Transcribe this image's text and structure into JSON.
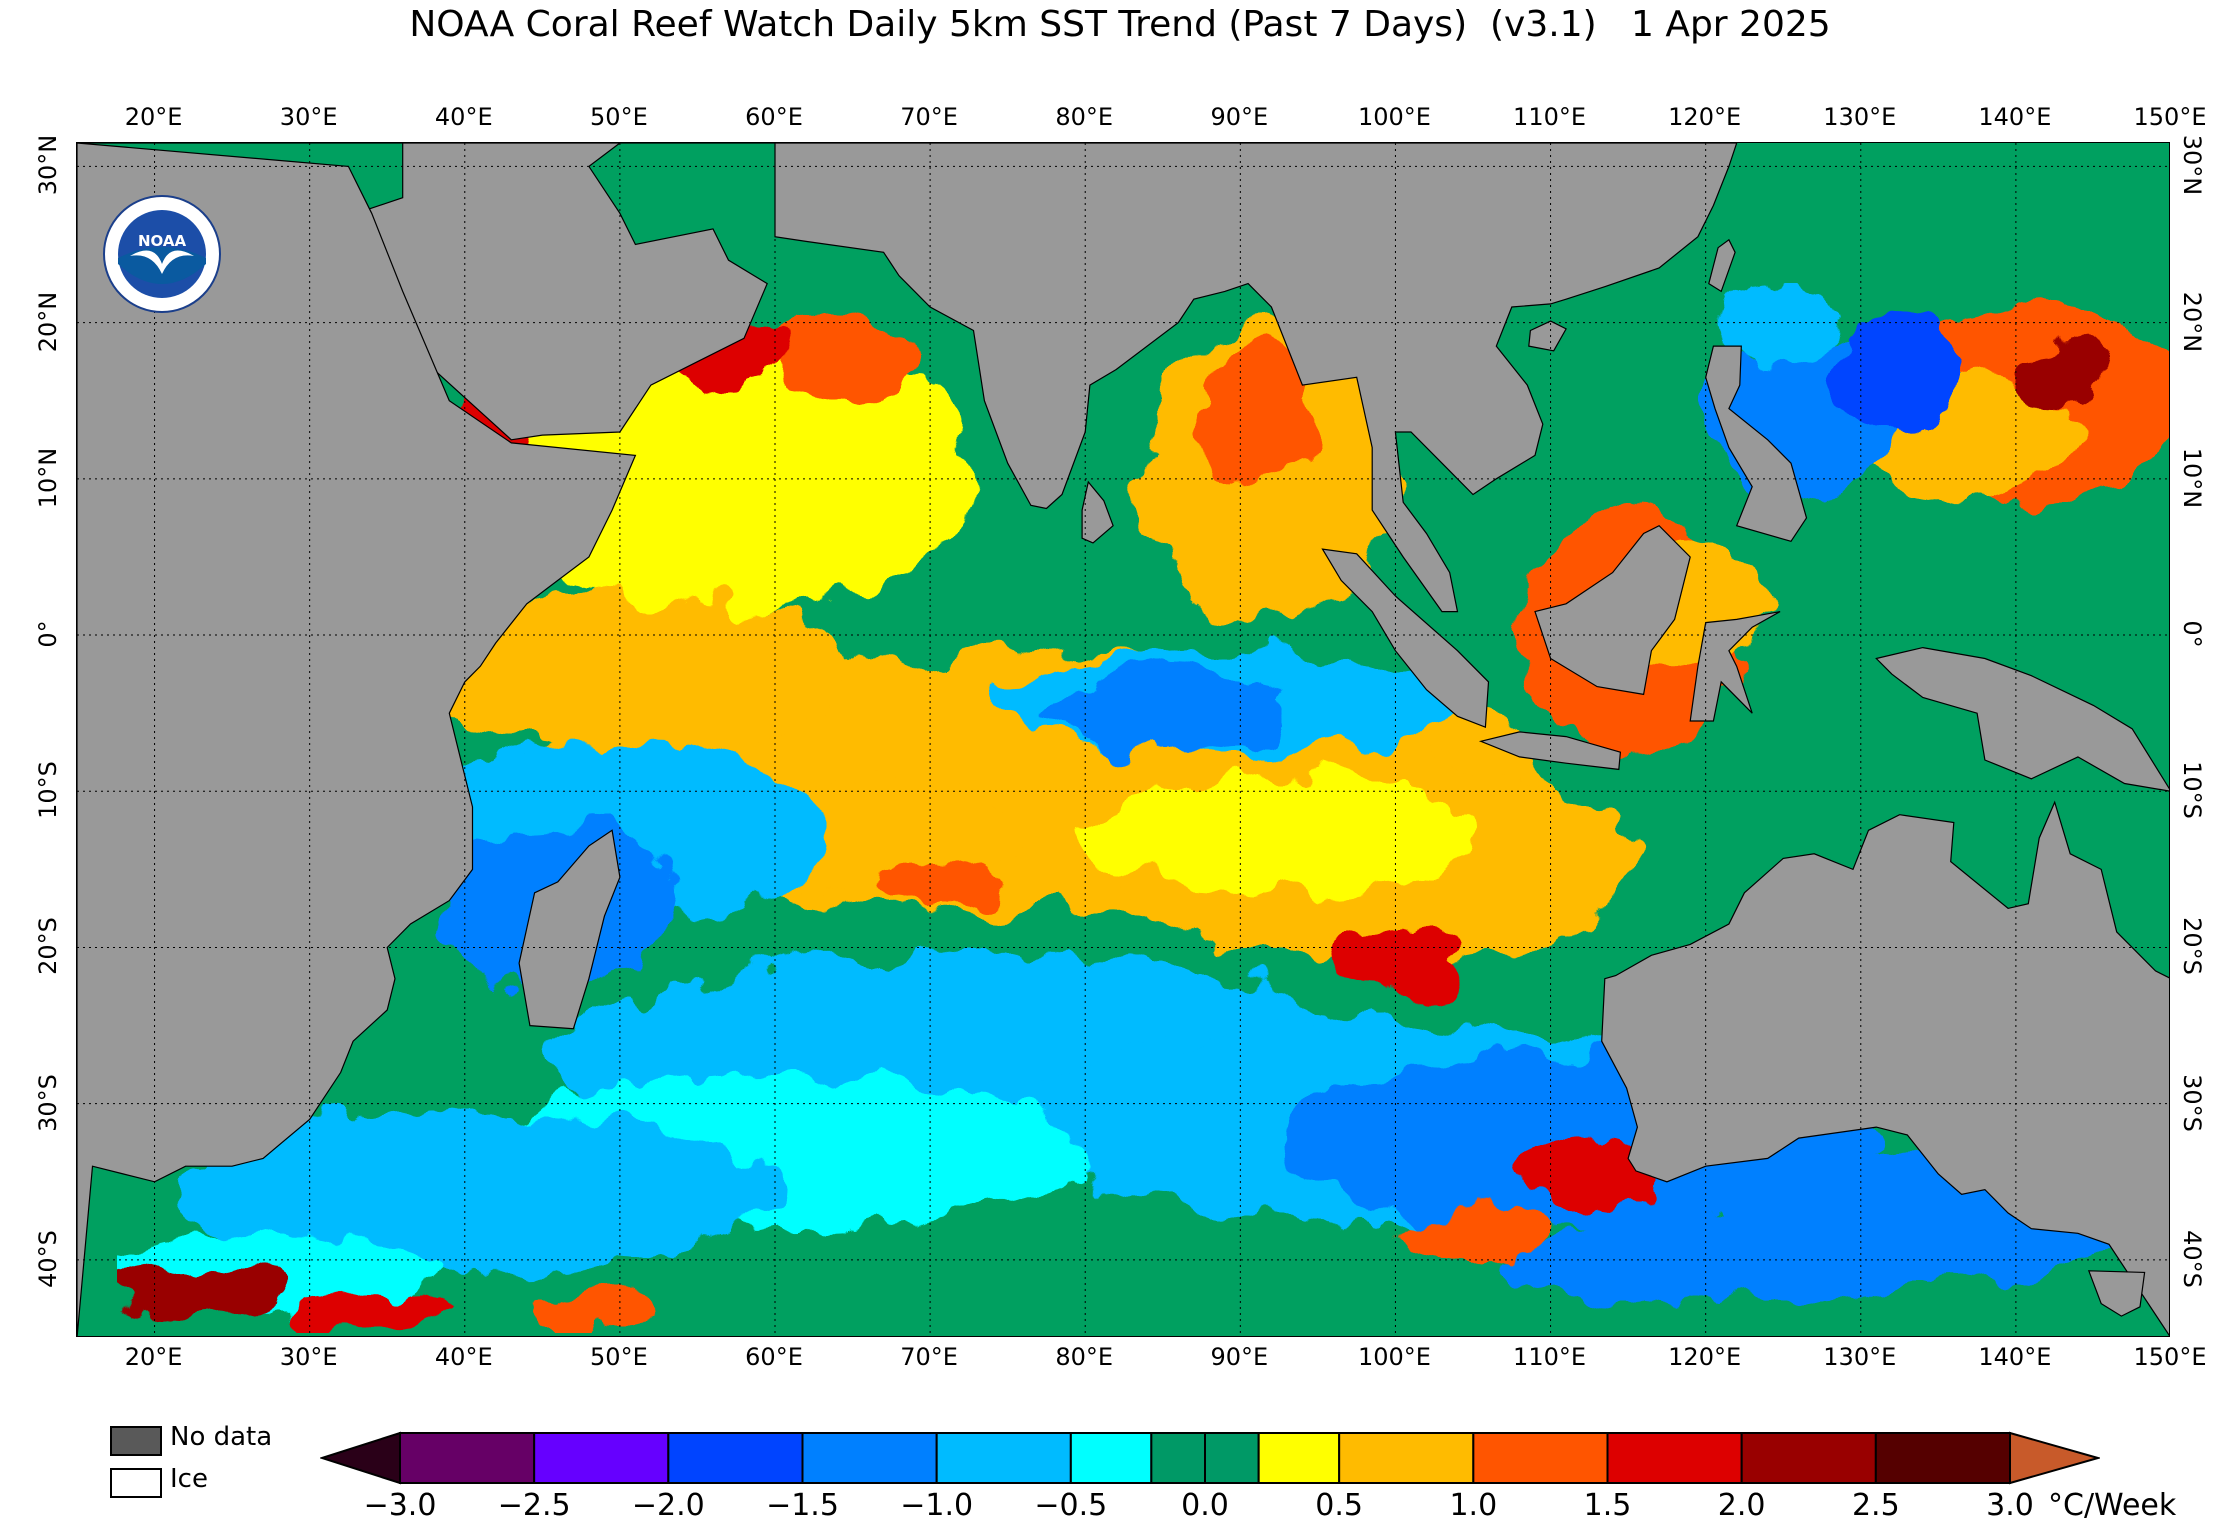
{
  "title": "NOAA Coral Reef Watch Daily 5km SST Trend (Past 7 Days)  (v3.1)   1 Apr 2025",
  "lon_labels": [
    "20°E",
    "30°E",
    "40°E",
    "50°E",
    "60°E",
    "70°E",
    "80°E",
    "90°E",
    "100°E",
    "110°E",
    "120°E",
    "130°E",
    "140°E",
    "150°E"
  ],
  "lon_values": [
    20,
    30,
    40,
    50,
    60,
    70,
    80,
    90,
    100,
    110,
    120,
    130,
    140,
    150
  ],
  "lat_labels": [
    "30°N",
    "20°N",
    "10°N",
    "0°",
    "10°S",
    "20°S",
    "30°S",
    "40°S"
  ],
  "lat_values": [
    30,
    20,
    10,
    0,
    -10,
    -20,
    -30,
    -40
  ],
  "lon_range": [
    15,
    150
  ],
  "lat_range": [
    -45,
    31.5
  ],
  "logo": {
    "icon": "noaa-logo-icon",
    "text": "NOAA"
  },
  "legend": {
    "nodata_label": "No data",
    "ice_label": "Ice"
  },
  "colorbar": {
    "units": "°C/Week",
    "tick_labels": [
      "−3.0",
      "−2.5",
      "−2.0",
      "−1.5",
      "−1.0",
      "−0.5",
      "0.0",
      "0.5",
      "1.0",
      "1.5",
      "2.0",
      "2.5",
      "3.0"
    ],
    "tick_values": [
      -3.0,
      -2.5,
      -2.0,
      -1.5,
      -1.0,
      -0.5,
      0.0,
      0.5,
      1.0,
      1.5,
      2.0,
      2.5,
      3.0
    ],
    "colors": [
      "#660066",
      "#6600ff",
      "#0044ff",
      "#0080ff",
      "#00bbff",
      "#00ffff",
      "#009966",
      "#009966",
      "#ffff00",
      "#ffbb00",
      "#ff5500",
      "#dd0000",
      "#990000",
      "#550000"
    ],
    "under_color": "#2a0018",
    "over_color": "#c85a2a",
    "land_color": "#999999"
  }
}
